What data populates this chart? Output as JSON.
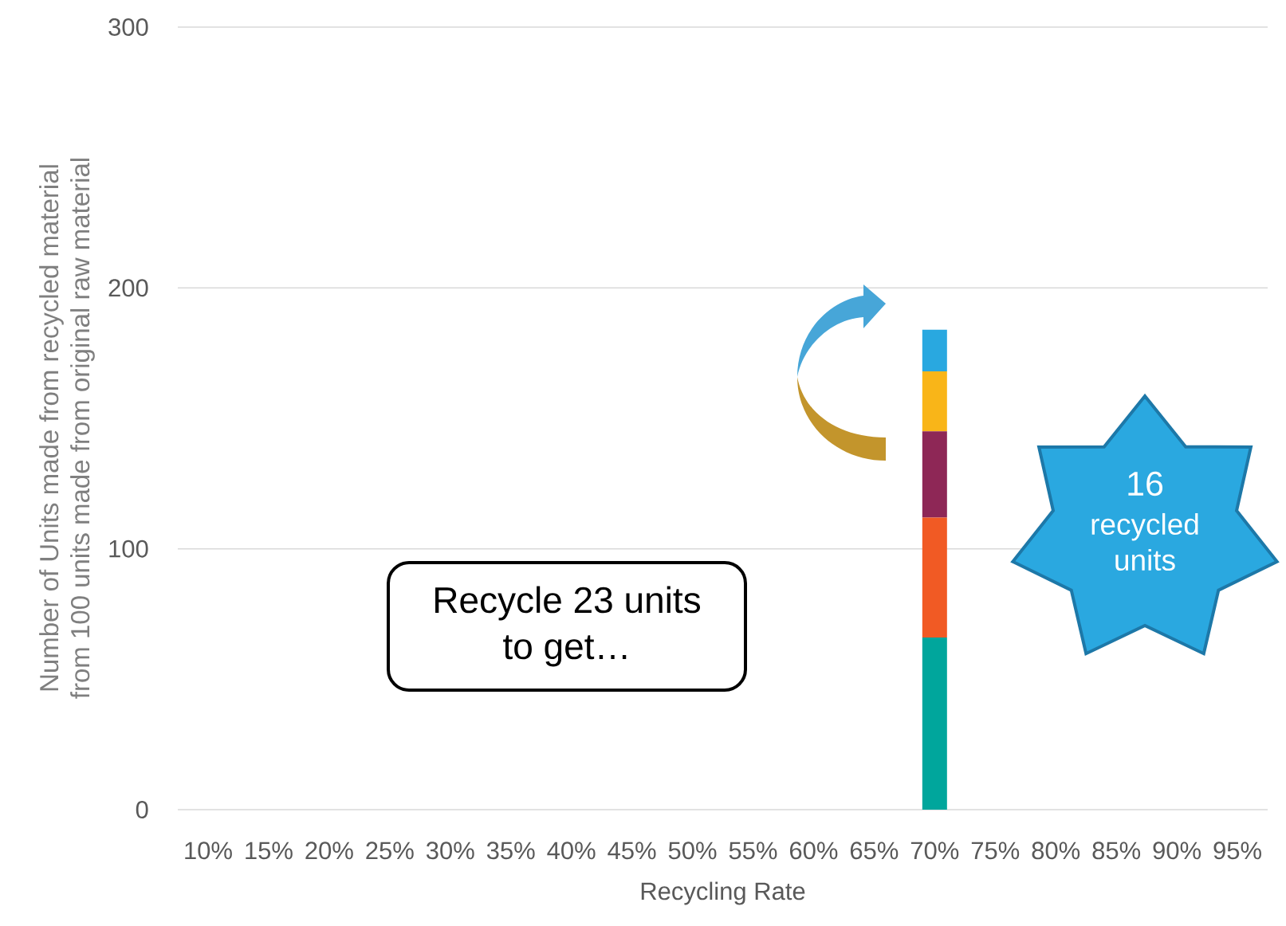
{
  "chart_data": {
    "type": "bar",
    "stacked": true,
    "xlabel": "Recycling Rate",
    "ylabel": "Number of Units made from recycled material from 100 units made from original raw material",
    "categories": [
      "10%",
      "15%",
      "20%",
      "25%",
      "30%",
      "35%",
      "40%",
      "45%",
      "50%",
      "55%",
      "60%",
      "65%",
      "70%",
      "75%",
      "80%",
      "85%",
      "90%",
      "95%"
    ],
    "series": [
      {
        "color": "#00A69C",
        "values": [
          null,
          null,
          null,
          null,
          null,
          null,
          null,
          null,
          null,
          null,
          null,
          null,
          66,
          null,
          null,
          null,
          null,
          null
        ]
      },
      {
        "color": "#F15A24",
        "values": [
          null,
          null,
          null,
          null,
          null,
          null,
          null,
          null,
          null,
          null,
          null,
          null,
          46,
          null,
          null,
          null,
          null,
          null
        ]
      },
      {
        "color": "#8E2756",
        "values": [
          null,
          null,
          null,
          null,
          null,
          null,
          null,
          null,
          null,
          null,
          null,
          null,
          33,
          null,
          null,
          null,
          null,
          null
        ]
      },
      {
        "color": "#F9B518",
        "values": [
          null,
          null,
          null,
          null,
          null,
          null,
          null,
          null,
          null,
          null,
          null,
          null,
          23,
          null,
          null,
          null,
          null,
          null
        ]
      },
      {
        "color": "#29A8E0",
        "values": [
          null,
          null,
          null,
          null,
          null,
          null,
          null,
          null,
          null,
          null,
          null,
          null,
          16,
          null,
          null,
          null,
          null,
          null
        ]
      }
    ],
    "ylim": [
      0,
      300
    ],
    "yticks": [
      0,
      100,
      200,
      300
    ],
    "grid": "y",
    "annotations": [
      "Recycle 23 units to get…",
      "16",
      "recycled units"
    ]
  }
}
